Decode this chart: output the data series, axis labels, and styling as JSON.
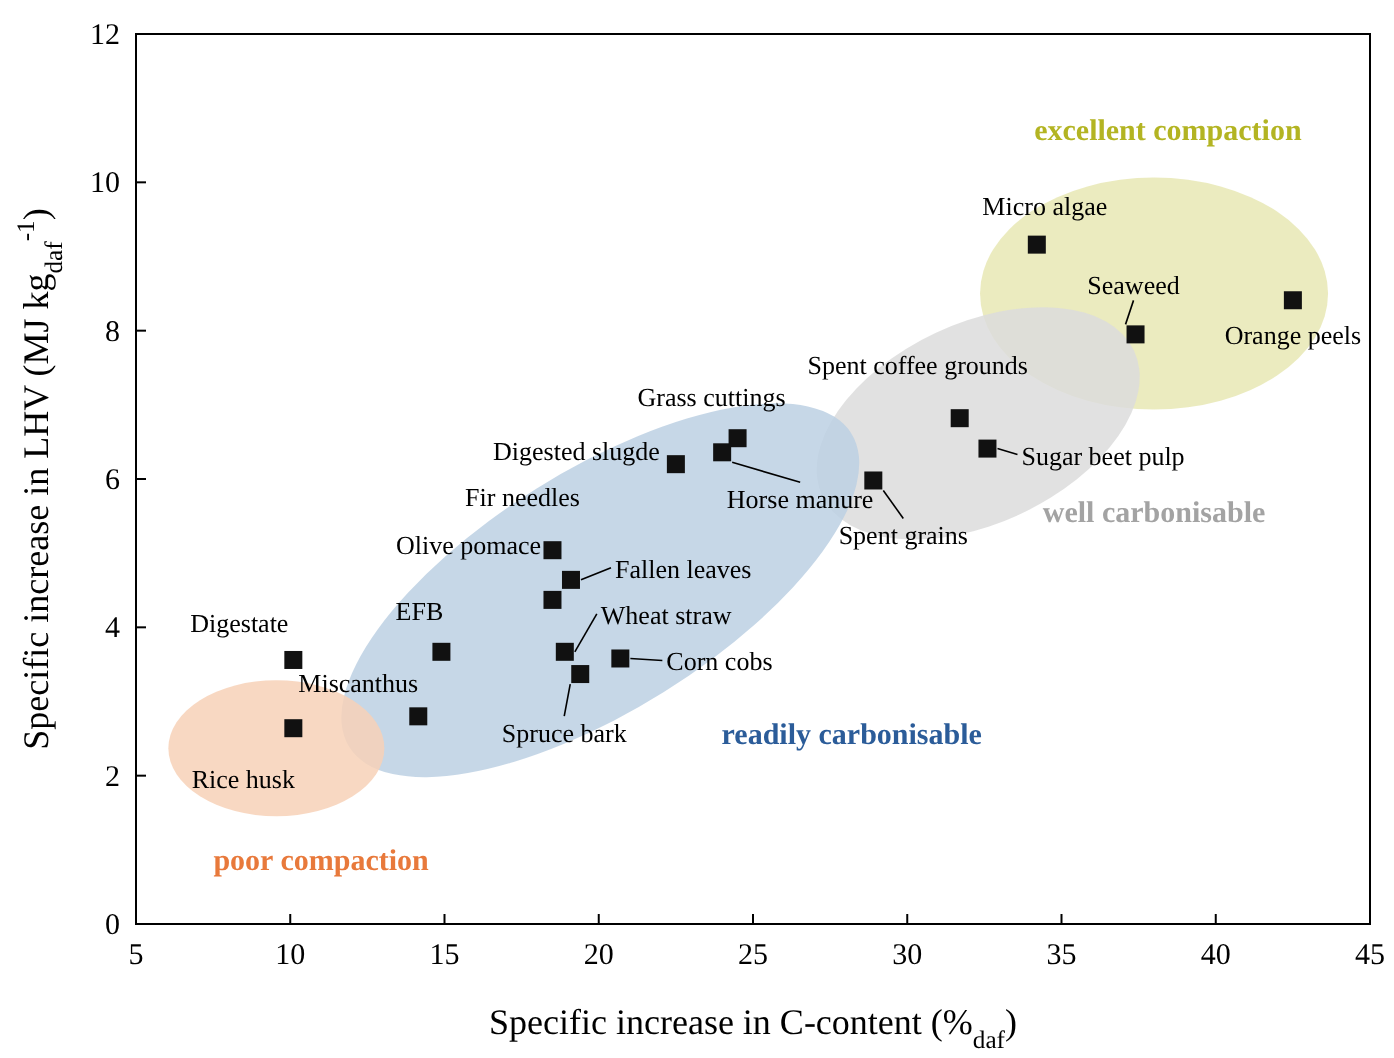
{
  "chart_data": {
    "type": "scatter",
    "xlabel": "Specific increase in C-content (%$_{daf}$)",
    "ylabel": "Specific increase in LHV (MJ kg$_{daf}$$^{-1}$)",
    "xlim": [
      5,
      45
    ],
    "xticks": [
      5,
      10,
      15,
      20,
      25,
      30,
      35,
      40,
      45
    ],
    "ylim": [
      0,
      12
    ],
    "yticks": [
      0,
      2,
      4,
      6,
      8,
      10,
      12
    ],
    "grid": false,
    "marker": "square",
    "series": [
      {
        "color": "#111111",
        "x": [
          10.1,
          10.1,
          14.15,
          14.9,
          18.5,
          18.5,
          19.1,
          18.9,
          19.4,
          20.7,
          22.5,
          24.0,
          24.5,
          28.9,
          31.7,
          32.6,
          34.2,
          37.4,
          42.5
        ],
        "values": [
          3.56,
          2.64,
          2.8,
          3.67,
          4.37,
          5.04,
          4.64,
          3.67,
          3.37,
          3.58,
          6.2,
          6.36,
          6.55,
          5.98,
          6.82,
          6.41,
          9.16,
          7.95,
          8.41
        ]
      }
    ],
    "annotations": [
      {
        "text": "Digestate",
        "x": 10.1,
        "y": 3.56
      },
      {
        "text": "Rice husk",
        "x": 10.1,
        "y": 2.64
      },
      {
        "text": "Miscanthus",
        "x": 14.15,
        "y": 2.8
      },
      {
        "text": "EFB",
        "x": 14.9,
        "y": 3.67
      },
      {
        "text": "Olive pomace",
        "x": 18.5,
        "y": 4.37
      },
      {
        "text": "Fir needles",
        "x": 18.5,
        "y": 5.04
      },
      {
        "text": "Fallen leaves",
        "x": 19.1,
        "y": 4.64
      },
      {
        "text": "Wheat straw",
        "x": 18.9,
        "y": 3.67
      },
      {
        "text": "Spruce bark",
        "x": 19.4,
        "y": 3.37
      },
      {
        "text": "Corn cobs",
        "x": 20.7,
        "y": 3.58
      },
      {
        "text": "Digested slugde",
        "x": 22.5,
        "y": 6.2
      },
      {
        "text": "Horse manure",
        "x": 24.0,
        "y": 6.36
      },
      {
        "text": "Grass cuttings",
        "x": 24.5,
        "y": 6.55
      },
      {
        "text": "Spent grains",
        "x": 28.9,
        "y": 5.98
      },
      {
        "text": "Spent coffee grounds",
        "x": 31.7,
        "y": 6.82
      },
      {
        "text": "Sugar beet pulp",
        "x": 32.6,
        "y": 6.41
      },
      {
        "text": "Micro algae",
        "x": 34.2,
        "y": 9.16
      },
      {
        "text": "Seaweed",
        "x": 37.4,
        "y": 7.95
      },
      {
        "text": "Orange peels",
        "x": 42.5,
        "y": 8.41
      },
      "excellent compaction",
      "well carbonisable",
      "readily carbonisable",
      "poor compaction"
    ]
  }
}
